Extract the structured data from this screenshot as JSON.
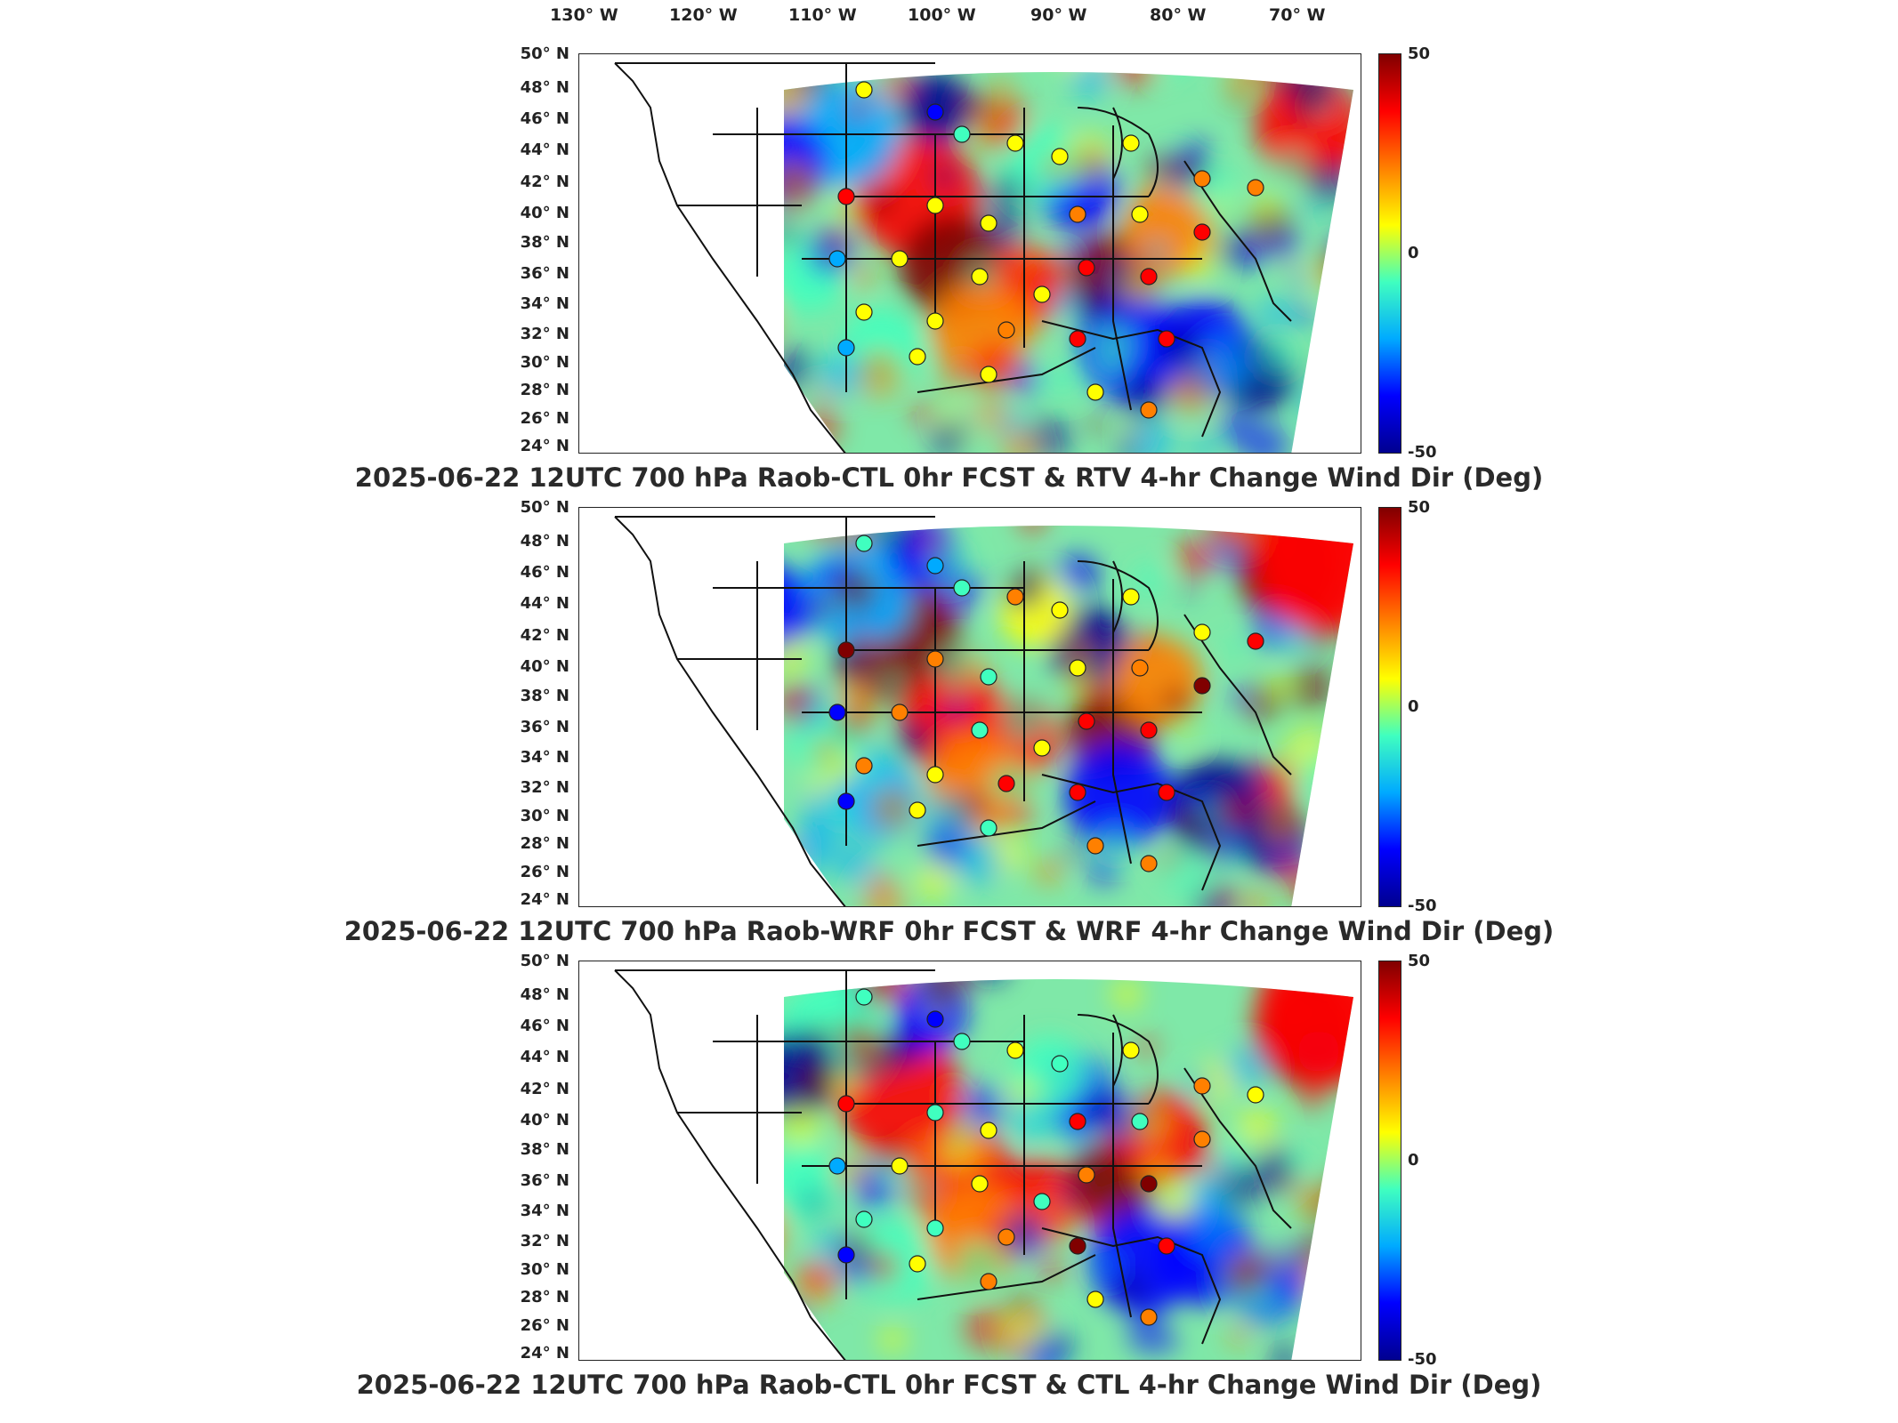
{
  "lon_labels": [
    "130° W",
    "120° W",
    "110° W",
    "100° W",
    "90° W",
    "80° W",
    "70° W"
  ],
  "lat_labels": [
    "50° N",
    "48° N",
    "46° N",
    "44° N",
    "42° N",
    "40° N",
    "38° N",
    "36° N",
    "34° N",
    "32° N",
    "30° N",
    "28° N",
    "26° N",
    "24° N"
  ],
  "colorbar": {
    "max_label": "50",
    "mid_label": "0",
    "min_label": "-50",
    "colors": [
      "#00008f",
      "#0000ff",
      "#00aaff",
      "#40ffbf",
      "#ffff00",
      "#ff8000",
      "#ff0000",
      "#800000"
    ]
  },
  "panels": [
    {
      "title": "2025-06-22 12UTC 700 hPa Raob-CTL 0hr FCST & RTV 4-hr Change Wind Dir (Deg)"
    },
    {
      "title": "2025-06-22 12UTC 700 hPa Raob-WRF 0hr FCST & WRF 4-hr Change Wind Dir (Deg)"
    },
    {
      "title": "2025-06-22 12UTC 700 hPa Raob-CTL 0hr FCST & CTL 4-hr Change Wind Dir (Deg)"
    }
  ]
}
